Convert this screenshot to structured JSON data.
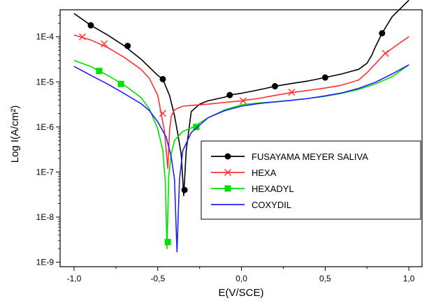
{
  "chart_data": {
    "type": "line",
    "xlabel": "E(V/SCE)",
    "ylabel": "Log I(A/cm²)",
    "xlim": [
      -1.0,
      1.0
    ],
    "ylim_log10": [
      -9.1,
      -3.4
    ],
    "y_scale": "log",
    "grid": false,
    "legend_position": "lower-right",
    "x_ticks": [
      {
        "value": -1.0,
        "label": "-1,0"
      },
      {
        "value": -0.5,
        "label": "-0,5"
      },
      {
        "value": 0.0,
        "label": "0,0"
      },
      {
        "value": 0.5,
        "label": "0,5"
      },
      {
        "value": 1.0,
        "label": "1,0"
      }
    ],
    "y_ticks": [
      {
        "value": 1e-09,
        "label": "1E-9"
      },
      {
        "value": 1e-08,
        "label": "1E-8"
      },
      {
        "value": 1e-07,
        "label": "1E-7"
      },
      {
        "value": 1e-06,
        "label": "1E-6"
      },
      {
        "value": 1e-05,
        "label": "1E-5"
      },
      {
        "value": 0.0001,
        "label": "1E-4"
      }
    ],
    "series": [
      {
        "name": "FUSAYAMA MEYER SALIVA",
        "color": "#000000",
        "marker": "circle",
        "points": [
          [
            -1.0,
            0.00033
          ],
          [
            -0.9,
            0.00018
          ],
          [
            -0.8,
            0.00011
          ],
          [
            -0.7,
            6.3e-05
          ],
          [
            -0.6,
            3.2e-05
          ],
          [
            -0.5,
            1.4e-05
          ],
          [
            -0.47,
            1.15e-05
          ],
          [
            -0.43,
            5e-06
          ],
          [
            -0.4,
            1.8e-06
          ],
          [
            -0.38,
            7e-07
          ],
          [
            -0.36,
            2.5e-07
          ],
          [
            -0.345,
            3e-08
          ],
          [
            -0.33,
            3e-07
          ],
          [
            -0.3,
            2.2e-06
          ],
          [
            -0.25,
            3.2e-06
          ],
          [
            -0.2,
            3.8e-06
          ],
          [
            -0.1,
            4.6e-06
          ],
          [
            -0.07,
            5.1e-06
          ],
          [
            0.0,
            5.6e-06
          ],
          [
            0.1,
            6.6e-06
          ],
          [
            0.2,
            8e-06
          ],
          [
            0.3,
            9.2e-06
          ],
          [
            0.4,
            1.05e-05
          ],
          [
            0.5,
            1.25e-05
          ],
          [
            0.6,
            1.5e-05
          ],
          [
            0.7,
            1.9e-05
          ],
          [
            0.75,
            2.6e-05
          ],
          [
            0.78,
            4e-05
          ],
          [
            0.8,
            6e-05
          ],
          [
            0.84,
            0.00012
          ],
          [
            0.9,
            0.00028
          ],
          [
            1.0,
            0.00065
          ]
        ],
        "markers": [
          [
            -0.9,
            0.00018
          ],
          [
            -0.68,
            6.3e-05
          ],
          [
            -0.47,
            1.15e-05
          ],
          [
            -0.34,
            4e-08
          ],
          [
            -0.07,
            5.1e-06
          ],
          [
            0.2,
            8e-06
          ],
          [
            0.5,
            1.25e-05
          ],
          [
            0.84,
            0.00012
          ]
        ]
      },
      {
        "name": "HEXA",
        "color": "#ff3030",
        "marker": "x",
        "points": [
          [
            -1.0,
            0.00011
          ],
          [
            -0.9,
            8.5e-05
          ],
          [
            -0.8,
            5.8e-05
          ],
          [
            -0.7,
            3.5e-05
          ],
          [
            -0.6,
            1.9e-05
          ],
          [
            -0.55,
            1.2e-05
          ],
          [
            -0.5,
            5e-06
          ],
          [
            -0.48,
            2e-06
          ],
          [
            -0.46,
            8e-07
          ],
          [
            -0.44,
            1.2e-07
          ],
          [
            -0.43,
            8e-07
          ],
          [
            -0.42,
            1.7e-06
          ],
          [
            -0.4,
            2.4e-06
          ],
          [
            -0.35,
            2.9e-06
          ],
          [
            -0.3,
            3e-06
          ],
          [
            -0.2,
            3.2e-06
          ],
          [
            -0.1,
            3.5e-06
          ],
          [
            0.0,
            3.8e-06
          ],
          [
            0.1,
            4.3e-06
          ],
          [
            0.2,
            5e-06
          ],
          [
            0.3,
            5.8e-06
          ],
          [
            0.4,
            6.5e-06
          ],
          [
            0.5,
            7.3e-06
          ],
          [
            0.6,
            8.5e-06
          ],
          [
            0.7,
            1.1e-05
          ],
          [
            0.75,
            1.6e-05
          ],
          [
            0.8,
            2.5e-05
          ],
          [
            0.85,
            4e-05
          ],
          [
            0.9,
            5.5e-05
          ],
          [
            0.95,
            7.5e-05
          ],
          [
            1.0,
            0.0001
          ]
        ],
        "markers": [
          [
            -0.95,
            0.0001
          ],
          [
            -0.82,
            7e-05
          ],
          [
            -0.47,
            2e-06
          ],
          [
            0.01,
            3.8e-06
          ],
          [
            0.3,
            5.9e-06
          ],
          [
            0.86,
            4.3e-05
          ]
        ]
      },
      {
        "name": "HEXADYL",
        "color": "#00e000",
        "marker": "square",
        "points": [
          [
            -1.0,
            3e-05
          ],
          [
            -0.9,
            2.2e-05
          ],
          [
            -0.8,
            1.4e-05
          ],
          [
            -0.7,
            8.5e-06
          ],
          [
            -0.6,
            4.5e-06
          ],
          [
            -0.55,
            2.5e-06
          ],
          [
            -0.5,
            9e-07
          ],
          [
            -0.47,
            3e-07
          ],
          [
            -0.455,
            6e-08
          ],
          [
            -0.445,
            2e-09
          ],
          [
            -0.435,
            8e-08
          ],
          [
            -0.42,
            2.5e-07
          ],
          [
            -0.4,
            5e-07
          ],
          [
            -0.35,
            8e-07
          ],
          [
            -0.3,
            9.5e-07
          ],
          [
            -0.27,
            1.1e-06
          ],
          [
            -0.2,
            1.6e-06
          ],
          [
            -0.1,
            2.4e-06
          ],
          [
            0.0,
            3.1e-06
          ],
          [
            0.1,
            3.4e-06
          ],
          [
            0.2,
            3.6e-06
          ],
          [
            0.3,
            3.9e-06
          ],
          [
            0.4,
            4.3e-06
          ],
          [
            0.5,
            4.8e-06
          ],
          [
            0.6,
            5.6e-06
          ],
          [
            0.7,
            6.8e-06
          ],
          [
            0.8,
            9e-06
          ],
          [
            0.9,
            1.3e-05
          ],
          [
            1.0,
            2.4e-05
          ]
        ],
        "markers": [
          [
            -0.85,
            1.75e-05
          ],
          [
            -0.72,
            9e-06
          ],
          [
            -0.44,
            2.8e-09
          ],
          [
            -0.27,
            1e-06
          ]
        ]
      },
      {
        "name": "COXYDIL",
        "color": "#2020ff",
        "marker": "none",
        "points": [
          [
            -1.0,
            2.2e-05
          ],
          [
            -0.9,
            1.4e-05
          ],
          [
            -0.8,
            9e-06
          ],
          [
            -0.7,
            5.5e-06
          ],
          [
            -0.6,
            3.3e-06
          ],
          [
            -0.55,
            2.3e-06
          ],
          [
            -0.5,
            1.3e-06
          ],
          [
            -0.45,
            6e-07
          ],
          [
            -0.42,
            2.2e-07
          ],
          [
            -0.4,
            7e-08
          ],
          [
            -0.385,
            1.7e-09
          ],
          [
            -0.37,
            7e-08
          ],
          [
            -0.35,
            3e-07
          ],
          [
            -0.3,
            7.5e-07
          ],
          [
            -0.25,
            1.1e-06
          ],
          [
            -0.2,
            1.6e-06
          ],
          [
            -0.1,
            2.3e-06
          ],
          [
            0.0,
            2.9e-06
          ],
          [
            0.1,
            3.3e-06
          ],
          [
            0.2,
            3.6e-06
          ],
          [
            0.3,
            3.9e-06
          ],
          [
            0.4,
            4.3e-06
          ],
          [
            0.5,
            4.9e-06
          ],
          [
            0.6,
            5.7e-06
          ],
          [
            0.7,
            7.2e-06
          ],
          [
            0.8,
            9.8e-06
          ],
          [
            0.9,
            1.5e-05
          ],
          [
            1.0,
            2.4e-05
          ]
        ],
        "markers": []
      }
    ]
  }
}
